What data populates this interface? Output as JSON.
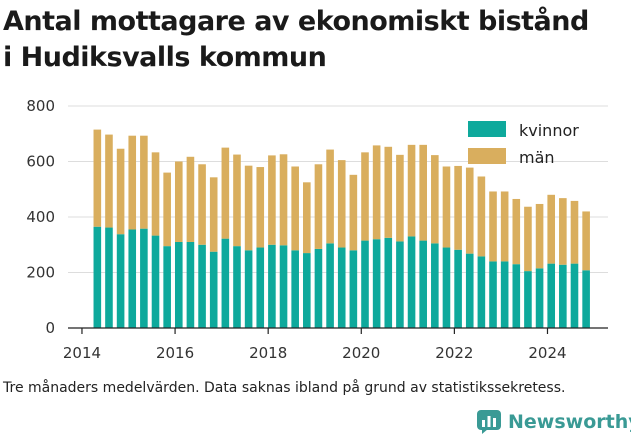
{
  "title_line1": "Antal mottagare av ekonomiskt bistånd",
  "title_line2": "i Hudiksvalls kommun",
  "footnote": "Tre månaders medelvärden. Data saknas ibland på grund av statistikssekretess.",
  "brand": "Newsworthy",
  "colors": {
    "kvinnor": "#0ea99c",
    "man": "#d9ae5e",
    "grid": "#dddddd",
    "brand": "#3a9a95"
  },
  "chart_data": {
    "type": "bar",
    "stacked": true,
    "title": "Antal mottagare av ekonomiskt bistånd i Hudiksvalls kommun",
    "xlabel": "",
    "ylabel": "",
    "ylim": [
      0,
      800
    ],
    "yticks": [
      "0",
      "200",
      "400",
      "600",
      "800"
    ],
    "xlim": [
      2013.7,
      2025.3
    ],
    "xticks": [
      "2014",
      "2016",
      "2018",
      "2020",
      "2022",
      "2024"
    ],
    "legend_position": "top-right",
    "grid": "horizontal",
    "x": [
      2014.33,
      2014.58,
      2014.83,
      2015.08,
      2015.33,
      2015.58,
      2015.83,
      2016.08,
      2016.33,
      2016.58,
      2016.83,
      2017.08,
      2017.33,
      2017.58,
      2017.83,
      2018.08,
      2018.33,
      2018.58,
      2018.83,
      2019.08,
      2019.33,
      2019.58,
      2019.83,
      2020.08,
      2020.33,
      2020.58,
      2020.83,
      2021.08,
      2021.33,
      2021.58,
      2021.83,
      2022.08,
      2022.33,
      2022.58,
      2022.83,
      2023.08,
      2023.33,
      2023.58,
      2023.83,
      2024.08,
      2024.33,
      2024.58,
      2024.83
    ],
    "series": [
      {
        "name": "kvinnor",
        "values": [
          365,
          362,
          338,
          355,
          358,
          333,
          295,
          310,
          310,
          300,
          275,
          322,
          295,
          280,
          290,
          300,
          298,
          280,
          270,
          285,
          305,
          290,
          280,
          315,
          320,
          325,
          312,
          330,
          315,
          305,
          290,
          282,
          268,
          258,
          240,
          240,
          230,
          205,
          215,
          232,
          228,
          232,
          208
        ]
      },
      {
        "name": "män",
        "values": [
          350,
          335,
          308,
          338,
          335,
          300,
          265,
          290,
          307,
          290,
          268,
          328,
          330,
          305,
          290,
          322,
          328,
          302,
          255,
          305,
          338,
          315,
          272,
          318,
          338,
          328,
          312,
          330,
          345,
          318,
          292,
          302,
          310,
          288,
          252,
          252,
          235,
          232,
          232,
          248,
          240,
          226,
          212
        ]
      }
    ]
  }
}
